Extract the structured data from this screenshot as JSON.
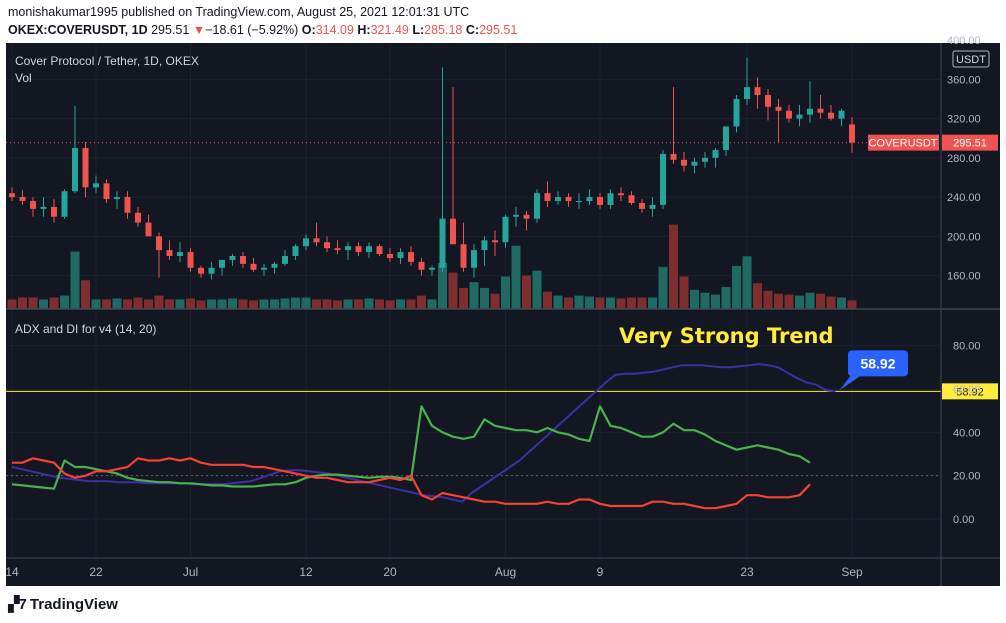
{
  "header": {
    "publish_line": "monishakumar1995 published on TradingView.com, August 25, 2021 12:01:31 UTC",
    "symbol": "OKEX:COVERUSDT, 1D",
    "last": "295.51",
    "change_arrow": "▼",
    "change": "−18.61 (−5.92%)",
    "o_label": "O:",
    "o_value": "314.09",
    "h_label": "H:",
    "h_value": "321.49",
    "l_label": "L:",
    "l_value": "285.18",
    "c_label": "C:",
    "c_value": "295.51"
  },
  "footer": {
    "brand": "TradingView",
    "logo_icon": "tradingview-logo-icon"
  },
  "colors": {
    "up": "#26a69a",
    "down": "#ef5350",
    "background": "#131722",
    "adx": "#3f2fa3",
    "di_plus": "#4caf50",
    "di_minus": "#f44336",
    "threshold": "#ffeb3b",
    "annotation": "#ffeb3b",
    "callout": "#2962ff"
  },
  "chart_data": [
    {
      "type": "candlestick",
      "title": "Cover Protocol / Tether, 1D, OKEX",
      "subtitle": "Vol",
      "currency": "USDT",
      "x_ticks": [
        "14",
        "22",
        "Jul",
        "12",
        "20",
        "Aug",
        "9",
        "23",
        "Sep"
      ],
      "x_tick_days": [
        0,
        8,
        17,
        28,
        36,
        47,
        56,
        70,
        80
      ],
      "y_ticks": [
        160,
        200,
        240,
        280,
        320,
        360,
        400
      ],
      "ylim": [
        126,
        397
      ],
      "current_price_label": "COVERUSDT",
      "current_price": "295.51",
      "series": [
        [
          244,
          250,
          236,
          240
        ],
        [
          240,
          247,
          232,
          236
        ],
        [
          236,
          240,
          220,
          228
        ],
        [
          228,
          240,
          220,
          230
        ],
        [
          230,
          238,
          214,
          220
        ],
        [
          220,
          248,
          218,
          246
        ],
        [
          246,
          333,
          244,
          290
        ],
        [
          290,
          296,
          240,
          250
        ],
        [
          250,
          262,
          244,
          254
        ],
        [
          254,
          258,
          234,
          238
        ],
        [
          238,
          246,
          228,
          240
        ],
        [
          240,
          246,
          218,
          224
        ],
        [
          224,
          230,
          210,
          214
        ],
        [
          214,
          222,
          200,
          200
        ],
        [
          200,
          204,
          158,
          186
        ],
        [
          186,
          196,
          176,
          180
        ],
        [
          180,
          194,
          174,
          184
        ],
        [
          184,
          188,
          164,
          168
        ],
        [
          168,
          170,
          158,
          162
        ],
        [
          162,
          174,
          156,
          168
        ],
        [
          168,
          176,
          160,
          176
        ],
        [
          176,
          182,
          170,
          180
        ],
        [
          180,
          184,
          168,
          172
        ],
        [
          172,
          178,
          164,
          166
        ],
        [
          166,
          172,
          160,
          168
        ],
        [
          168,
          174,
          162,
          172
        ],
        [
          172,
          186,
          170,
          180
        ],
        [
          180,
          192,
          176,
          190
        ],
        [
          190,
          202,
          186,
          198
        ],
        [
          198,
          214,
          190,
          194
        ],
        [
          194,
          200,
          184,
          188
        ],
        [
          188,
          196,
          182,
          186
        ],
        [
          186,
          194,
          176,
          190
        ],
        [
          190,
          194,
          180,
          184
        ],
        [
          184,
          194,
          178,
          190
        ],
        [
          190,
          192,
          180,
          182
        ],
        [
          182,
          188,
          174,
          178
        ],
        [
          178,
          188,
          172,
          184
        ],
        [
          184,
          190,
          170,
          174
        ],
        [
          174,
          178,
          160,
          166
        ],
        [
          166,
          170,
          160,
          168
        ],
        [
          168,
          372,
          164,
          218
        ],
        [
          218,
          352,
          196,
          192
        ],
        [
          192,
          214,
          164,
          168
        ],
        [
          168,
          192,
          158,
          186
        ],
        [
          186,
          200,
          170,
          196
        ],
        [
          196,
          206,
          180,
          194
        ],
        [
          194,
          222,
          188,
          220
        ],
        [
          220,
          230,
          210,
          222
        ],
        [
          222,
          226,
          206,
          218
        ],
        [
          218,
          248,
          214,
          244
        ],
        [
          244,
          256,
          230,
          236
        ],
        [
          236,
          246,
          232,
          240
        ],
        [
          240,
          244,
          230,
          236
        ],
        [
          236,
          244,
          228,
          236
        ],
        [
          236,
          248,
          232,
          240
        ],
        [
          240,
          244,
          228,
          232
        ],
        [
          232,
          248,
          228,
          244
        ],
        [
          244,
          250,
          236,
          242
        ],
        [
          242,
          246,
          232,
          234
        ],
        [
          234,
          238,
          224,
          228
        ],
        [
          228,
          240,
          220,
          232
        ],
        [
          232,
          288,
          228,
          284
        ],
        [
          284,
          352,
          274,
          278
        ],
        [
          278,
          286,
          266,
          272
        ],
        [
          272,
          280,
          264,
          276
        ],
        [
          276,
          286,
          270,
          280
        ],
        [
          280,
          290,
          270,
          288
        ],
        [
          288,
          302,
          282,
          312
        ],
        [
          312,
          344,
          306,
          340
        ],
        [
          340,
          382,
          334,
          352
        ],
        [
          352,
          362,
          330,
          344
        ],
        [
          344,
          350,
          318,
          332
        ],
        [
          332,
          340,
          296,
          328
        ],
        [
          328,
          334,
          316,
          320
        ],
        [
          320,
          334,
          312,
          324
        ],
        [
          324,
          358,
          316,
          330
        ],
        [
          330,
          344,
          320,
          326
        ],
        [
          326,
          334,
          318,
          320
        ],
        [
          320,
          330,
          312,
          328
        ],
        [
          314.09,
          321.49,
          285.18,
          295.51
        ]
      ],
      "volume": [
        10,
        12,
        12,
        10,
        12,
        14,
        60,
        30,
        10,
        10,
        11,
        10,
        12,
        10,
        14,
        10,
        10,
        11,
        9,
        10,
        10,
        11,
        10,
        9,
        10,
        10,
        11,
        12,
        12,
        10,
        10,
        9,
        10,
        10,
        11,
        10,
        9,
        10,
        10,
        14,
        10,
        48,
        38,
        22,
        28,
        22,
        16,
        34,
        66,
        35,
        40,
        18,
        14,
        12,
        14,
        13,
        12,
        12,
        11,
        12,
        12,
        12,
        44,
        88,
        34,
        20,
        17,
        15,
        23,
        45,
        55,
        27,
        19,
        16,
        15,
        14,
        17,
        16,
        13,
        12,
        9
      ],
      "volume_max": 120
    },
    {
      "type": "line",
      "title": "ADX and DI for v4 (14, 20)",
      "annotation": "Very Strong Trend",
      "y_ticks": [
        0,
        20,
        40,
        60,
        80
      ],
      "ylim": [
        -18,
        96
      ],
      "threshold": 20,
      "current_line_value": "58.92",
      "current_value_label": "58.92",
      "series": [
        {
          "values": [
            24,
            23,
            22,
            21,
            20,
            19,
            18.5,
            18,
            17.5,
            17.5,
            17.5,
            17,
            17,
            17,
            16.5,
            16.5,
            16.5,
            16.5,
            16.5,
            16,
            16,
            16,
            16,
            16.5,
            17,
            17.5,
            19,
            20.5,
            22,
            22.5,
            22.5,
            22,
            21.5,
            21,
            20,
            19,
            18,
            17,
            16,
            15,
            14,
            13,
            12,
            11,
            10.5,
            10,
            9,
            8,
            12,
            15,
            18,
            21,
            24,
            27,
            31,
            35,
            39,
            43,
            47,
            51,
            55,
            59,
            63,
            66.5,
            67,
            67,
            67.5,
            68,
            69,
            70,
            71,
            71,
            71,
            70.5,
            70,
            70,
            70.5,
            71,
            71.5,
            71,
            70,
            67.5,
            65,
            63,
            62,
            59.5,
            58.92
          ]
        },
        {
          "values": [
            16,
            15.5,
            15,
            14.5,
            14,
            27,
            24,
            24,
            23,
            22,
            21,
            19,
            18,
            17.5,
            17,
            17,
            16.5,
            16.5,
            16,
            15.5,
            15.5,
            15,
            15,
            15,
            15.5,
            16,
            16,
            17,
            19,
            20,
            20.5,
            20.5,
            20,
            19.5,
            19,
            19.5,
            19.5,
            19,
            18,
            52,
            43,
            40,
            38,
            37,
            38,
            46,
            43,
            42,
            41,
            41,
            40,
            42,
            40,
            39,
            37,
            36,
            52,
            43,
            42,
            40,
            38,
            38,
            40,
            44,
            41,
            41,
            39,
            36,
            34,
            32,
            33,
            34,
            33,
            32,
            30,
            29,
            26
          ]
        },
        {
          "values": [
            26,
            26,
            28,
            27,
            26,
            21,
            19,
            20,
            22,
            22,
            23,
            24,
            28,
            27,
            27,
            28,
            27,
            28,
            26,
            25,
            25,
            25,
            25,
            24,
            24,
            23,
            22,
            21,
            20,
            19,
            19,
            18,
            17,
            17,
            17,
            18,
            19,
            18,
            20,
            11,
            9,
            12,
            11,
            10,
            9,
            8,
            8,
            7,
            7,
            7,
            7,
            8,
            7,
            7,
            9,
            9,
            7,
            6,
            6,
            6,
            6,
            8,
            8,
            7,
            7,
            6,
            5,
            5,
            6,
            7,
            11,
            11,
            10,
            10,
            10,
            11,
            16
          ]
        }
      ]
    }
  ]
}
